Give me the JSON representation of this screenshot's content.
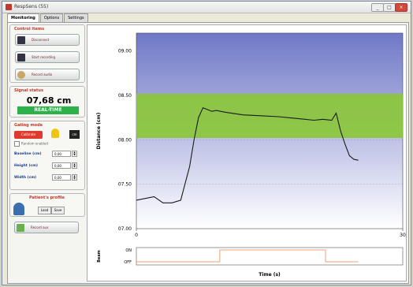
{
  "window": {
    "title": "RespSens (55)"
  },
  "tabs": [
    "Monitoring",
    "Options",
    "Settings"
  ],
  "control": {
    "header": "Control items",
    "buttons": [
      "Disconnect",
      "Start recording",
      "Record audio"
    ]
  },
  "target": {
    "header": "Signal status",
    "distance": "07,68 cm",
    "mode": "REAL-TIME"
  },
  "gating": {
    "header": "Gating mode",
    "calibrate": "Calibrate",
    "enable": "Random enabled",
    "unit": "cm",
    "fields": [
      {
        "label": "Baseline (cm)",
        "value": "0,00"
      },
      {
        "label": "Height (cm)",
        "value": "0,00"
      },
      {
        "label": "Width (cm)",
        "value": "0,00"
      }
    ]
  },
  "patient": {
    "header": "Patient's profile",
    "load": "Load",
    "save": "Save"
  },
  "bottom_button": "Record aux",
  "chart_data": {
    "type": "line",
    "xlabel": "Time (s)",
    "ylabel": "Distance (cm)",
    "xlim": [
      0,
      30
    ],
    "ylim": [
      7.0,
      9.2
    ],
    "yticks": [
      "07.00",
      "07.50",
      "08.00",
      "08.50",
      "09.00"
    ],
    "yvalues": [
      7.0,
      7.5,
      8.0,
      8.5,
      9.0
    ],
    "xticks": [
      "0",
      "30"
    ],
    "band": [
      8.02,
      8.52
    ],
    "colors": {
      "band": "#8cc63f",
      "top": "#6f78c7",
      "bottom": "#ffffff",
      "line": "#1a1a1a"
    },
    "series": [
      {
        "x": [
          0,
          1,
          2,
          3,
          4,
          5,
          6,
          6.5,
          7,
          7.5,
          8,
          8.5,
          9,
          10,
          12,
          14,
          16,
          18,
          20,
          21,
          22,
          22.5,
          23,
          23.5,
          24,
          24.5,
          25
        ],
        "y": [
          7.32,
          7.34,
          7.36,
          7.29,
          7.29,
          7.32,
          7.7,
          8.0,
          8.25,
          8.36,
          8.34,
          8.32,
          8.33,
          8.31,
          8.28,
          8.27,
          8.26,
          8.24,
          8.22,
          8.23,
          8.22,
          8.3,
          8.1,
          7.95,
          7.82,
          7.78,
          7.77
        ]
      }
    ],
    "beam": {
      "ylabel": "Beam",
      "levels": [
        "ON",
        "OFF"
      ],
      "x": [
        0,
        9.4,
        9.4,
        21.3,
        21.3,
        25
      ],
      "state": [
        0,
        0,
        1,
        1,
        0,
        0
      ]
    }
  }
}
